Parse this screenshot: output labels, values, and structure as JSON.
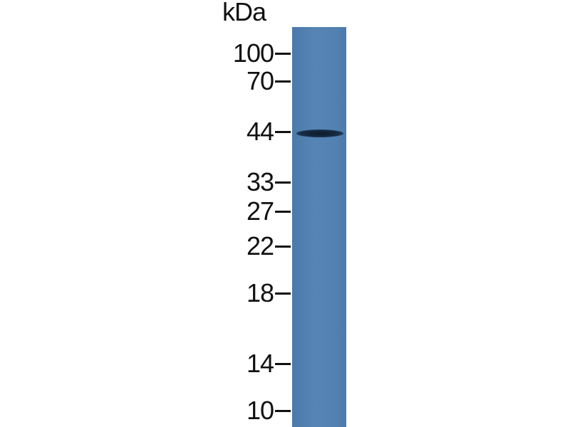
{
  "unit_label": "kDa",
  "markers": [
    {
      "label": "100",
      "kda": 100
    },
    {
      "label": "70",
      "kda": 70
    },
    {
      "label": "44",
      "kda": 44
    },
    {
      "label": "33",
      "kda": 33
    },
    {
      "label": "27",
      "kda": 27
    },
    {
      "label": "22",
      "kda": 22
    },
    {
      "label": "18",
      "kda": 18
    },
    {
      "label": "14",
      "kda": 14
    },
    {
      "label": "10",
      "kda": 10
    }
  ],
  "lane_color": "#5282b3",
  "band": {
    "kda": 44,
    "color": "#12243a"
  }
}
